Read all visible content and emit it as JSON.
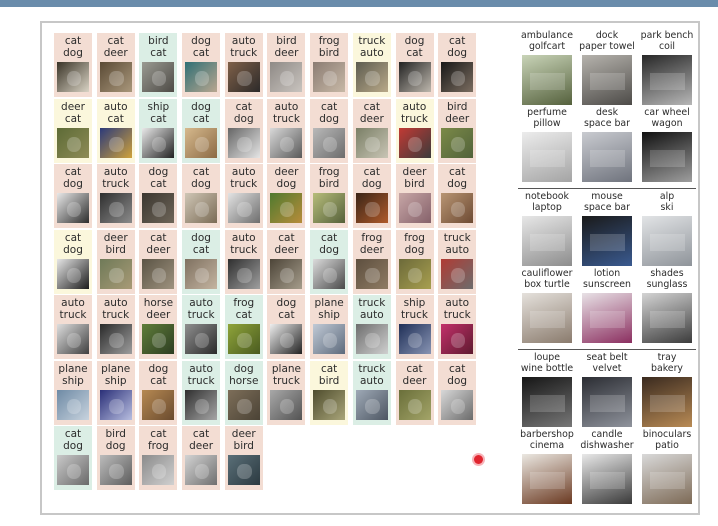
{
  "grid_cells": [
    {
      "l1": "cat",
      "l2": "dog",
      "bg": "pink",
      "c1": "#3a3428",
      "c2": "#d9d3c4"
    },
    {
      "l1": "cat",
      "l2": "deer",
      "bg": "pink",
      "c1": "#5a4a35",
      "c2": "#a9977b"
    },
    {
      "l1": "bird",
      "l2": "cat",
      "bg": "green",
      "c1": "#9a9a92",
      "c2": "#4d4a45"
    },
    {
      "l1": "dog",
      "l2": "cat",
      "bg": "pink",
      "c1": "#2f6f75",
      "c2": "#b8a68f"
    },
    {
      "l1": "auto",
      "l2": "truck",
      "bg": "pink",
      "c1": "#7f6048",
      "c2": "#2c2a2a"
    },
    {
      "l1": "bird",
      "l2": "deer",
      "bg": "pink",
      "c1": "#8f8a86",
      "c2": "#c8c3be"
    },
    {
      "l1": "frog",
      "l2": "bird",
      "bg": "pink",
      "c1": "#8b7c73",
      "c2": "#c7b8a6"
    },
    {
      "l1": "truck",
      "l2": "auto",
      "bg": "yellow",
      "c1": "#5d5c50",
      "c2": "#b9a988"
    },
    {
      "l1": "dog",
      "l2": "cat",
      "bg": "pink",
      "c1": "#222",
      "c2": "#bdb7ad"
    },
    {
      "l1": "cat",
      "l2": "dog",
      "bg": "pink",
      "c1": "#171717",
      "c2": "#7b6d60"
    },
    {
      "l1": "deer",
      "l2": "cat",
      "bg": "yellow",
      "c1": "#5d6b36",
      "c2": "#8e8b57"
    },
    {
      "l1": "auto",
      "l2": "cat",
      "bg": "yellow",
      "c1": "#2b3a7a",
      "c2": "#cfa23a"
    },
    {
      "l1": "ship",
      "l2": "cat",
      "bg": "green",
      "c1": "#e9e9e9",
      "c2": "#222"
    },
    {
      "l1": "dog",
      "l2": "cat",
      "bg": "green",
      "c1": "#d6b98d",
      "c2": "#8c6b45"
    },
    {
      "l1": "cat",
      "l2": "dog",
      "bg": "pink",
      "c1": "#666",
      "c2": "#e5e5e5"
    },
    {
      "l1": "auto",
      "l2": "truck",
      "bg": "pink",
      "c1": "#d9d9d9",
      "c2": "#5a5a5a"
    },
    {
      "l1": "cat",
      "l2": "dog",
      "bg": "pink",
      "c1": "#b9b9b9",
      "c2": "#6c6c6c"
    },
    {
      "l1": "cat",
      "l2": "deer",
      "bg": "pink",
      "c1": "#7a7f66",
      "c2": "#c9c5b5"
    },
    {
      "l1": "auto",
      "l2": "truck",
      "bg": "yellow",
      "c1": "#c23a34",
      "c2": "#3b3b3b"
    },
    {
      "l1": "bird",
      "l2": "deer",
      "bg": "pink",
      "c1": "#7b8a48",
      "c2": "#51623a"
    },
    {
      "l1": "cat",
      "l2": "dog",
      "bg": "pink",
      "c1": "#e8e8e8",
      "c2": "#2d2d2d"
    },
    {
      "l1": "auto",
      "l2": "truck",
      "bg": "pink",
      "c1": "#2f2f2f",
      "c2": "#8b8b8b"
    },
    {
      "l1": "dog",
      "l2": "cat",
      "bg": "pink",
      "c1": "#3b362f",
      "c2": "#6d6558"
    },
    {
      "l1": "cat",
      "l2": "dog",
      "bg": "pink",
      "c1": "#cfc6b6",
      "c2": "#7a6b55"
    },
    {
      "l1": "auto",
      "l2": "truck",
      "bg": "pink",
      "c1": "#e3e3e3",
      "c2": "#6e6e6e"
    },
    {
      "l1": "deer",
      "l2": "dog",
      "bg": "pink",
      "c1": "#4f7a2f",
      "c2": "#b88c3a"
    },
    {
      "l1": "frog",
      "l2": "bird",
      "bg": "pink",
      "c1": "#b7bd7a",
      "c2": "#55603a"
    },
    {
      "l1": "cat",
      "l2": "dog",
      "bg": "pink",
      "c1": "#3a2518",
      "c2": "#b05a2a"
    },
    {
      "l1": "deer",
      "l2": "bird",
      "bg": "pink",
      "c1": "#c7a6a6",
      "c2": "#85616a"
    },
    {
      "l1": "cat",
      "l2": "dog",
      "bg": "pink",
      "c1": "#b89573",
      "c2": "#6d4a33"
    },
    {
      "l1": "cat",
      "l2": "dog",
      "bg": "yellow",
      "c1": "#e6e6e6",
      "c2": "#1c1c1c"
    },
    {
      "l1": "deer",
      "l2": "bird",
      "bg": "pink",
      "c1": "#6f7a58",
      "c2": "#a89a76"
    },
    {
      "l1": "cat",
      "l2": "deer",
      "bg": "pink",
      "c1": "#5b5445",
      "c2": "#9e927e"
    },
    {
      "l1": "dog",
      "l2": "cat",
      "bg": "green",
      "c1": "#7f7161",
      "c2": "#c4b4a0"
    },
    {
      "l1": "auto",
      "l2": "truck",
      "bg": "pink",
      "c1": "#2f2f2f",
      "c2": "#9f9f9f"
    },
    {
      "l1": "cat",
      "l2": "deer",
      "bg": "pink",
      "c1": "#4d4538",
      "c2": "#a59c8b"
    },
    {
      "l1": "cat",
      "l2": "dog",
      "bg": "green",
      "c1": "#dcdcdc",
      "c2": "#4a4a4a"
    },
    {
      "l1": "frog",
      "l2": "deer",
      "bg": "pink",
      "c1": "#5d4f3f",
      "c2": "#8f7b63"
    },
    {
      "l1": "frog",
      "l2": "dog",
      "bg": "pink",
      "c1": "#6c6a3a",
      "c2": "#a89f4f"
    },
    {
      "l1": "truck",
      "l2": "auto",
      "bg": "pink",
      "c1": "#b03b34",
      "c2": "#6c6c6c"
    },
    {
      "l1": "auto",
      "l2": "truck",
      "bg": "pink",
      "c1": "#dedede",
      "c2": "#404040"
    },
    {
      "l1": "auto",
      "l2": "truck",
      "bg": "pink",
      "c1": "#2a2a2a",
      "c2": "#9d9d9d"
    },
    {
      "l1": "horse",
      "l2": "deer",
      "bg": "pink",
      "c1": "#5f7d39",
      "c2": "#2d3d22"
    },
    {
      "l1": "auto",
      "l2": "truck",
      "bg": "green",
      "c1": "#8f8f8f",
      "c2": "#2b2b2b"
    },
    {
      "l1": "frog",
      "l2": "cat",
      "bg": "green",
      "c1": "#8fa43a",
      "c2": "#4a5b20"
    },
    {
      "l1": "dog",
      "l2": "cat",
      "bg": "pink",
      "c1": "#eeeeee",
      "c2": "#222222"
    },
    {
      "l1": "plane",
      "l2": "ship",
      "bg": "pink",
      "c1": "#c1cad6",
      "c2": "#5d6a7c"
    },
    {
      "l1": "truck",
      "l2": "auto",
      "bg": "green",
      "c1": "#6e6e6e",
      "c2": "#cfcfcf"
    },
    {
      "l1": "ship",
      "l2": "truck",
      "bg": "pink",
      "c1": "#1f2f57",
      "c2": "#8894b3"
    },
    {
      "l1": "auto",
      "l2": "truck",
      "bg": "pink",
      "c1": "#c2306a",
      "c2": "#5e1a2f"
    },
    {
      "l1": "plane",
      "l2": "ship",
      "bg": "pink",
      "c1": "#6e8aa5",
      "c2": "#c8d3de"
    },
    {
      "l1": "plane",
      "l2": "ship",
      "bg": "pink",
      "c1": "#2a2f78",
      "c2": "#b8bee0"
    },
    {
      "l1": "dog",
      "l2": "cat",
      "bg": "pink",
      "c1": "#b68952",
      "c2": "#6a4b2f"
    },
    {
      "l1": "auto",
      "l2": "truck",
      "bg": "green",
      "c1": "#2f2f2f",
      "c2": "#a6a6a6"
    },
    {
      "l1": "dog",
      "l2": "horse",
      "bg": "green",
      "c1": "#7d6e59",
      "c2": "#4b4336"
    },
    {
      "l1": "plane",
      "l2": "truck",
      "bg": "pink",
      "c1": "#a8a8a8",
      "c2": "#535353"
    },
    {
      "l1": "cat",
      "l2": "bird",
      "bg": "yellow",
      "c1": "#4f4d2d",
      "c2": "#a9a57a"
    },
    {
      "l1": "truck",
      "l2": "auto",
      "bg": "green",
      "c1": "#9ea9b6",
      "c2": "#4d5662"
    },
    {
      "l1": "cat",
      "l2": "deer",
      "bg": "pink",
      "c1": "#6a6f3a",
      "c2": "#a3a468"
    },
    {
      "l1": "cat",
      "l2": "dog",
      "bg": "pink",
      "c1": "#d8d8d8",
      "c2": "#6b6b6b"
    },
    {
      "l1": "cat",
      "l2": "dog",
      "bg": "green",
      "c1": "#c9c9c9",
      "c2": "#6a6a6a"
    },
    {
      "l1": "bird",
      "l2": "dog",
      "bg": "pink",
      "c1": "#bcbcbc",
      "c2": "#5d5d5d"
    },
    {
      "l1": "cat",
      "l2": "frog",
      "bg": "pink",
      "c1": "#8b8b8b",
      "c2": "#d0d0d0"
    },
    {
      "l1": "cat",
      "l2": "deer",
      "bg": "pink",
      "c1": "#d3d3d3",
      "c2": "#707070"
    },
    {
      "l1": "deer",
      "l2": "bird",
      "bg": "pink",
      "c1": "#5a6f78",
      "c2": "#2b3940"
    }
  ],
  "side_groups": [
    [
      {
        "l1": "ambulance",
        "l2": "golfcart",
        "c1": "#c9d4b8",
        "c2": "#55613d"
      },
      {
        "l1": "dock",
        "l2": "paper towel",
        "c1": "#b6b3ad",
        "c2": "#4d4b48"
      },
      {
        "l1": "park bench",
        "l2": "coil",
        "c1": "#272727",
        "c2": "#b7b7b7"
      },
      {
        "l1": "perfume",
        "l2": "pillow",
        "c1": "#ececec",
        "c2": "#a4a4a4"
      },
      {
        "l1": "desk",
        "l2": "space bar",
        "c1": "#c9cbd0",
        "c2": "#6f737d"
      },
      {
        "l1": "car wheel",
        "l2": "wagon",
        "c1": "#111111",
        "c2": "#9e9e9e"
      }
    ],
    [
      {
        "l1": "notebook",
        "l2": "laptop",
        "c1": "#e7e7e7",
        "c2": "#8d8d8d"
      },
      {
        "l1": "mouse",
        "l2": "space bar",
        "c1": "#1a1a1a",
        "c2": "#3a5a90"
      },
      {
        "l1": "alp",
        "l2": "ski",
        "c1": "#e2e4e6",
        "c2": "#8f949a"
      },
      {
        "l1": "cauliflower",
        "l2": "box turtle",
        "c1": "#e5e1dc",
        "c2": "#8a7b6d"
      },
      {
        "l1": "lotion",
        "l2": "sunscreen",
        "c1": "#e8e2e6",
        "c2": "#8b2f60"
      },
      {
        "l1": "shades",
        "l2": "sunglass",
        "c1": "#d4d4d4",
        "c2": "#3c3c3c"
      }
    ],
    [
      {
        "l1": "loupe",
        "l2": "wine bottle",
        "c1": "#161616",
        "c2": "#777777"
      },
      {
        "l1": "seat belt",
        "l2": "velvet",
        "c1": "#2b2d33",
        "c2": "#8f939c"
      },
      {
        "l1": "tray",
        "l2": "bakery",
        "c1": "#3a2a1f",
        "c2": "#b98b55"
      },
      {
        "l1": "barbershop",
        "l2": "cinema",
        "c1": "#ebe8e2",
        "c2": "#6b3a22"
      },
      {
        "l1": "candle",
        "l2": "dishwasher",
        "c1": "#e9e9e9",
        "c2": "#3a3a3a"
      },
      {
        "l1": "binoculars",
        "l2": "patio",
        "c1": "#d9d9d9",
        "c2": "#7d6a56"
      }
    ]
  ],
  "colors": {
    "pink": "#f3ddd3",
    "yellow": "#fbf7dc",
    "green": "#dbeee5",
    "topbar": "#6a8cab",
    "cursor": "#e0252f"
  }
}
